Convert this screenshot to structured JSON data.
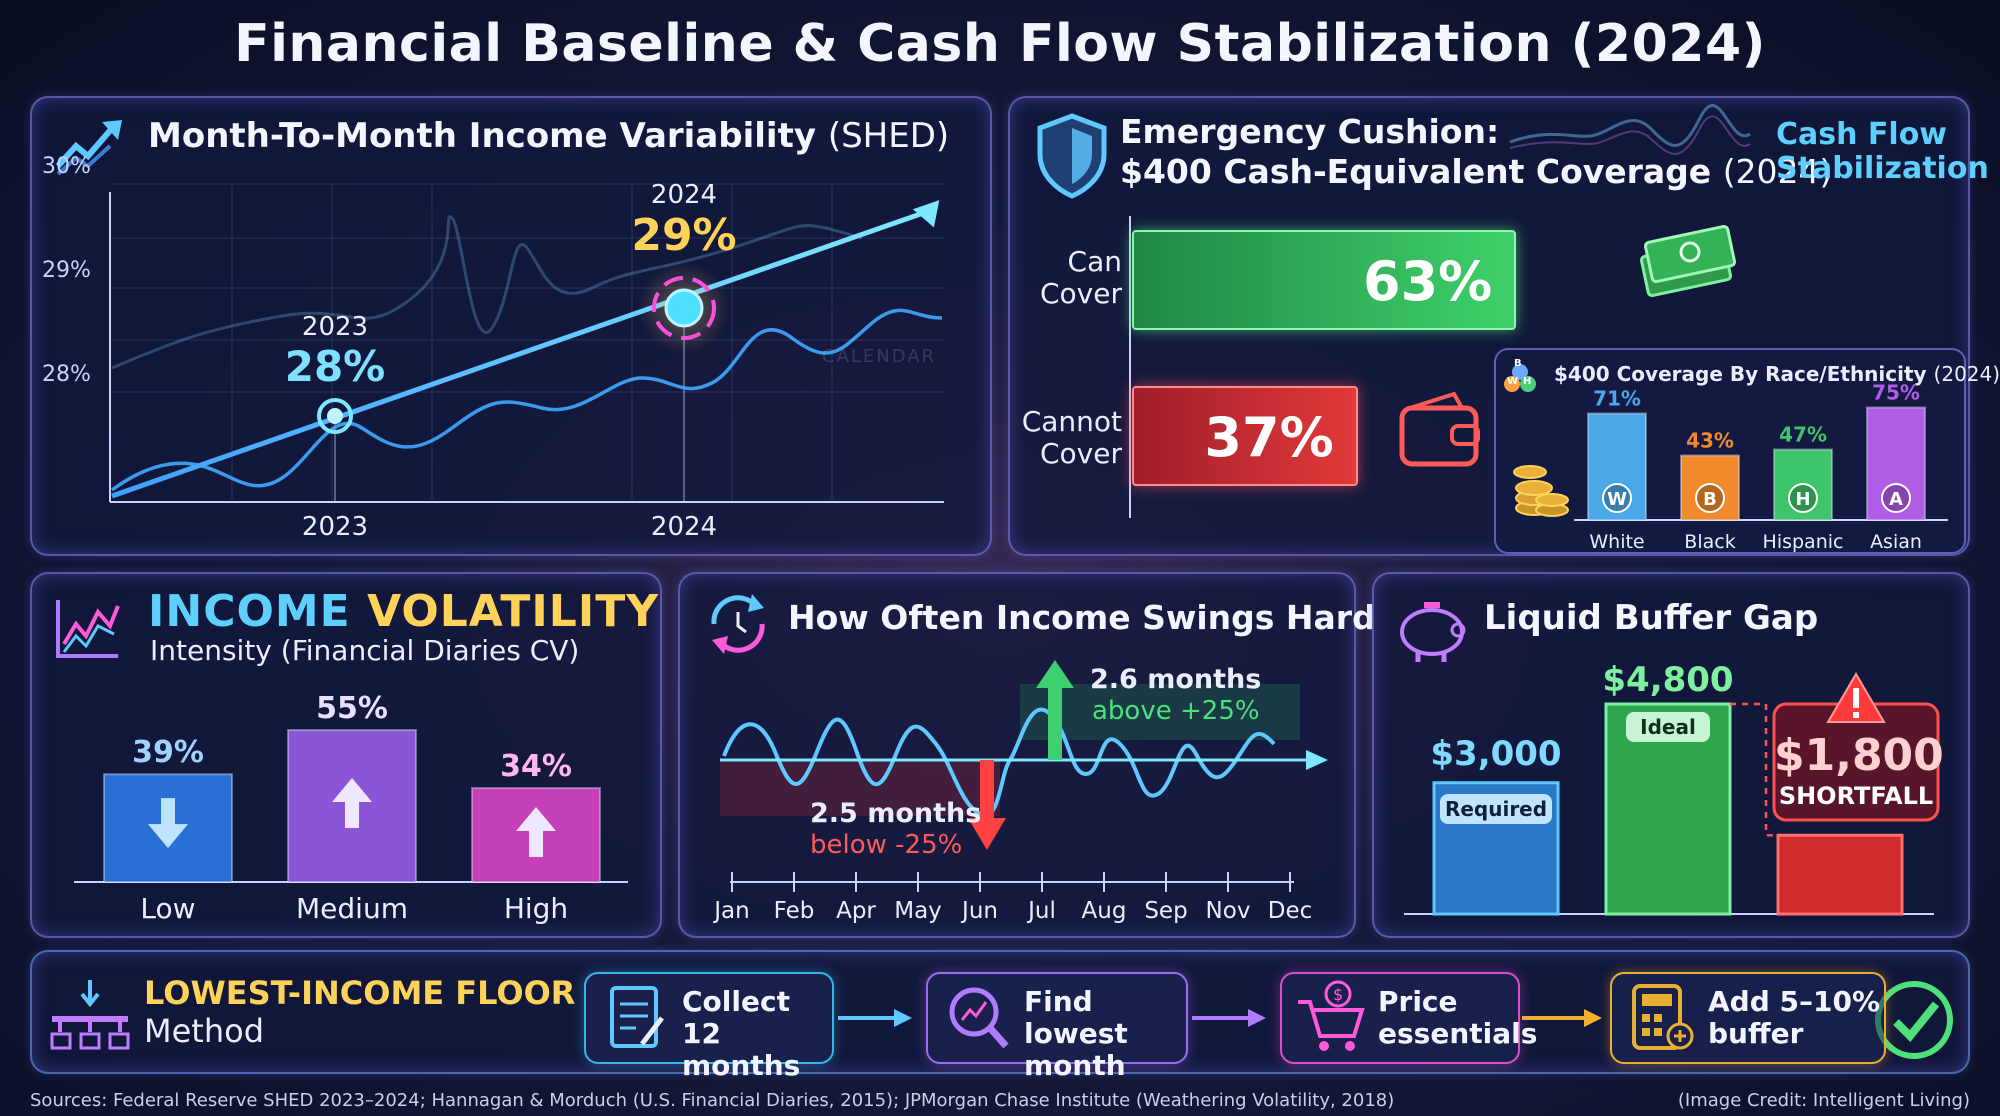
{
  "title": "Financial Baseline & Cash Flow Stabilization (2024)",
  "income_variability": {
    "title_bold": "Month-To-Month Income Variability",
    "title_light": "(SHED)",
    "y_ticks": [
      "30%",
      "29%",
      "28%"
    ],
    "x_ticks": [
      "2023",
      "2024"
    ],
    "point_2023_year": "2023",
    "point_2023_value": "28%",
    "point_2024_year": "2024",
    "point_2024_value": "29%",
    "bg_word": "CALENDAR",
    "icon": "trend-up-icon"
  },
  "emergency": {
    "title_line1": "Emergency Cushion:",
    "title_line2_bold": "$400 Cash-Equivalent Coverage",
    "title_line2_light": "(2024)",
    "badge_line1": "Cash Flow",
    "badge_line2": "Stabilization",
    "can_label_1": "Can",
    "can_label_2": "Cover",
    "can_value": "63%",
    "cannot_label_1": "Cannot",
    "cannot_label_2": "Cover",
    "cannot_value": "37%",
    "icons": [
      "shield-icon",
      "cash-stack-icon",
      "wallet-icon",
      "coins-icon"
    ]
  },
  "race": {
    "title_bold": "$400 Coverage By Race/Ethnicity",
    "title_light": "(2024)",
    "badge_letters": [
      "B",
      "W",
      "H"
    ],
    "groups": [
      {
        "name": "White",
        "letter": "W",
        "value": 71,
        "label": "71%",
        "color": "#4aa8e8"
      },
      {
        "name": "Black",
        "letter": "B",
        "value": 43,
        "label": "43%",
        "color": "#f08a2c"
      },
      {
        "name": "Hispanic",
        "letter": "H",
        "value": 47,
        "label": "47%",
        "color": "#3ec46a"
      },
      {
        "name": "Asian",
        "letter": "A",
        "value": 75,
        "label": "75%",
        "color": "#b05ee8"
      }
    ]
  },
  "volatility": {
    "title_word1": "INCOME",
    "title_word2": "VOLATILITY",
    "subtitle": "Intensity (Financial Diaries CV)",
    "bars": [
      {
        "name": "Low",
        "value": 39,
        "label": "39%",
        "color": "#2a6fd6",
        "label_color": "#9fd2ff"
      },
      {
        "name": "Medium",
        "value": 55,
        "label": "55%",
        "color": "#8a55d6",
        "label_color": "#e8e0ff"
      },
      {
        "name": "High",
        "value": 34,
        "label": "34%",
        "color": "#c43fb8",
        "label_color": "#ffb8ec"
      }
    ]
  },
  "swings": {
    "title": "How Often Income Swings Hard",
    "above_value": "2.6 months",
    "above_text": "above +25%",
    "below_value": "2.5 months",
    "below_text": "below -25%",
    "months": [
      "Jan",
      "Feb",
      "Apr",
      "May",
      "Jun",
      "Jul",
      "Aug",
      "Sep",
      "Nov",
      "Dec"
    ]
  },
  "buffer": {
    "title": "Liquid Buffer Gap",
    "required_value": "$3,000",
    "required_label": "Required",
    "required_amount": 3000,
    "ideal_value": "$4,800",
    "ideal_label": "Ideal",
    "ideal_amount": 4800,
    "shortfall_value": "$1,800",
    "shortfall_label": "SHORTFALL",
    "shortfall_amount": 1800,
    "icons": [
      "piggy-bank-icon",
      "warning-icon"
    ]
  },
  "floor": {
    "title_bold": "LOWEST-INCOME FLOOR",
    "title_light": "Method",
    "steps": [
      {
        "line1": "Collect",
        "line2": "12 months",
        "icon": "document-icon",
        "color": "#36b6e8"
      },
      {
        "line1": "Find lowest",
        "line2": "month",
        "icon": "magnify-chart-icon",
        "color": "#9a6cf0"
      },
      {
        "line1": "Price",
        "line2": "essentials",
        "icon": "cart-icon",
        "color": "#d84fc8"
      },
      {
        "line1": "Add 5–10%",
        "line2": "buffer",
        "icon": "calculator-icon",
        "color": "#e8b030"
      }
    ]
  },
  "footer": {
    "sources": "Sources: Federal Reserve SHED 2023–2024; Hannagan & Morduch (U.S. Financial Diaries, 2015); JPMorgan Chase Institute (Weathering Volatility, 2018)",
    "credit": "(Image Credit: Intelligent Living)"
  }
}
